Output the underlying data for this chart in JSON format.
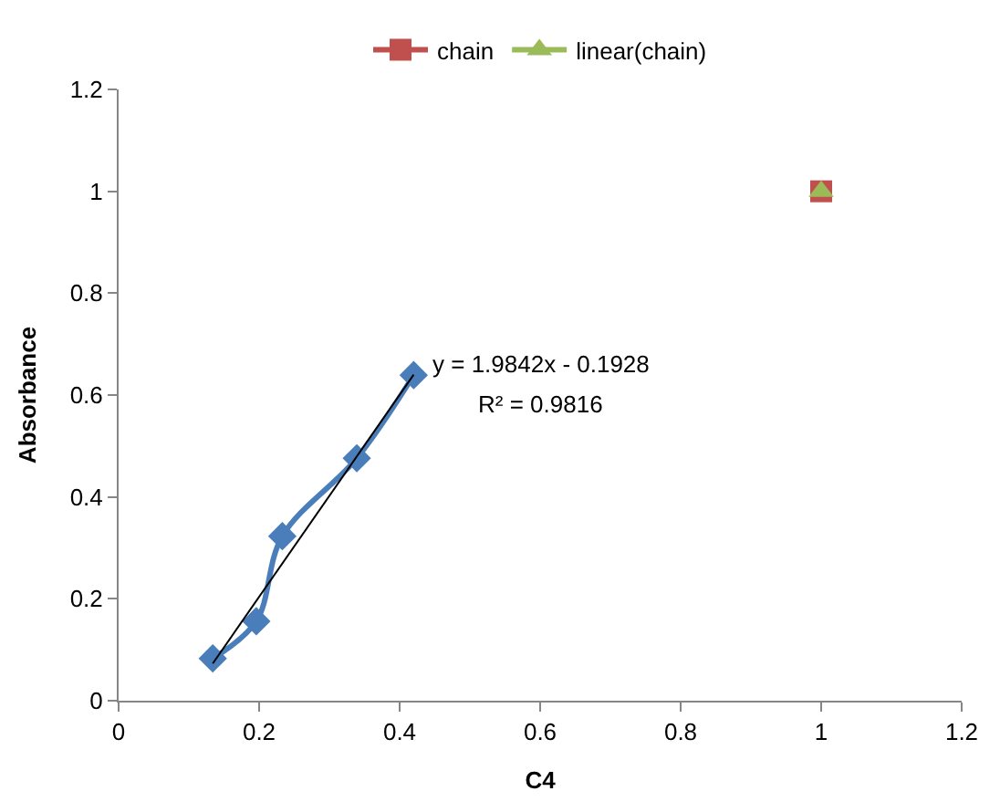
{
  "chart_data": {
    "type": "line",
    "xlabel": "C4",
    "ylabel": "Absorbance",
    "xlim": [
      0,
      1.2
    ],
    "xticks": [
      0,
      0.2,
      0.4,
      0.6,
      0.8,
      1,
      1.2
    ],
    "ylim": [
      0,
      1.2
    ],
    "yticks": [
      0,
      0.2,
      0.4,
      0.6,
      0.8,
      1,
      1.2
    ],
    "legend": "top",
    "annotations": [
      "y = 1.9842x - 0.1928",
      "R² = 0.9816"
    ],
    "series": [
      {
        "color": "#4a7ebb",
        "marker": "diamond",
        "x": [
          0.134,
          0.196,
          0.233,
          0.339,
          0.42
        ],
        "values": [
          0.083,
          0.156,
          0.323,
          0.476,
          0.639
        ]
      },
      {
        "color": "#000000",
        "marker": "none",
        "x": [
          0.134,
          0.42
        ],
        "values": [
          0.073,
          0.64
        ]
      },
      {
        "name": "chain",
        "color": "#c0504d",
        "marker": "square",
        "x": [
          1
        ],
        "values": [
          1
        ]
      },
      {
        "name": "linear(chain)",
        "color": "#9bbb59",
        "marker": "triangle",
        "x": [
          1
        ],
        "values": [
          1
        ]
      }
    ]
  }
}
